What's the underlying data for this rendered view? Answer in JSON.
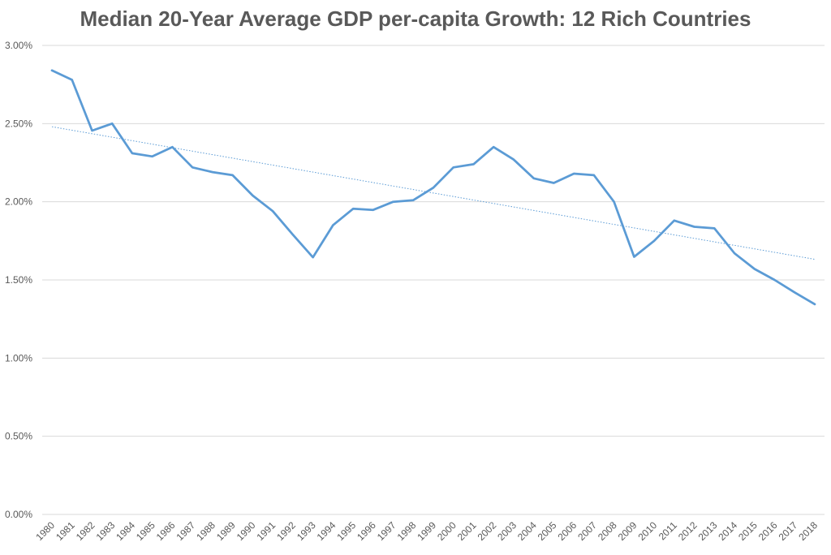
{
  "chart_data": {
    "type": "line",
    "title": "Median 20-Year Average GDP per-capita Growth: 12 Rich Countries",
    "xlabel": "",
    "ylabel": "",
    "ylim": [
      0,
      0.03
    ],
    "y_tick_labels": [
      "0.00%",
      "0.50%",
      "1.00%",
      "1.50%",
      "2.00%",
      "2.50%",
      "3.00%"
    ],
    "y_ticks": [
      0,
      0.005,
      0.01,
      0.015,
      0.02,
      0.025,
      0.03
    ],
    "grid": "horizontal",
    "legend": "none",
    "categories": [
      "1980",
      "1981",
      "1982",
      "1983",
      "1984",
      "1985",
      "1986",
      "1987",
      "1988",
      "1989",
      "1990",
      "1991",
      "1992",
      "1993",
      "1994",
      "1995",
      "1996",
      "1997",
      "1998",
      "1999",
      "2000",
      "2001",
      "2002",
      "2003",
      "2004",
      "2005",
      "2006",
      "2007",
      "2008",
      "2009",
      "2010",
      "2011",
      "2012",
      "2013",
      "2014",
      "2015",
      "2016",
      "2017",
      "2018"
    ],
    "series": [
      {
        "color": "#5B9BD5",
        "values": [
          0.0284,
          0.0278,
          0.02455,
          0.025,
          0.0231,
          0.0229,
          0.0235,
          0.0222,
          0.0219,
          0.0217,
          0.0204,
          0.0194,
          0.0179,
          0.01645,
          0.0185,
          0.01955,
          0.01948,
          0.02,
          0.0201,
          0.0209,
          0.0222,
          0.0224,
          0.0235,
          0.0227,
          0.0215,
          0.0212,
          0.0218,
          0.0217,
          0.02,
          0.01648,
          0.0175,
          0.0188,
          0.0184,
          0.0183,
          0.0167,
          0.0157,
          0.015,
          0.0142,
          0.01345
        ]
      }
    ],
    "trendline": {
      "type": "linear",
      "style": "dotted",
      "color": "#5B9BD5",
      "start": 0.0248,
      "end": 0.01632
    }
  }
}
